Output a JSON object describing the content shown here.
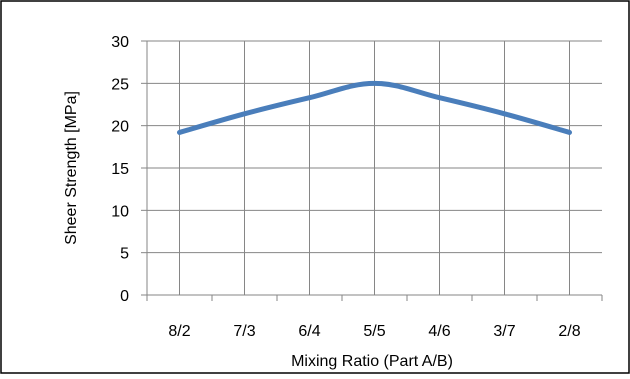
{
  "chart_data": {
    "type": "line",
    "title": "",
    "xlabel": "Mixing Ratio (Part A/B)",
    "ylabel": "Sheer Strength [MPa]",
    "categories": [
      "8/2",
      "7/3",
      "6/4",
      "5/5",
      "4/6",
      "3/7",
      "2/8"
    ],
    "series": [
      {
        "values": [
          19.2,
          21.4,
          23.3,
          25.0,
          23.3,
          21.4,
          19.2
        ],
        "color": "#4a7ebb"
      }
    ],
    "ylim": [
      0,
      30
    ],
    "yticks": [
      "0",
      "5",
      "10",
      "15",
      "20",
      "25",
      "30"
    ],
    "grid": true,
    "legend": "none",
    "smooth": true
  }
}
